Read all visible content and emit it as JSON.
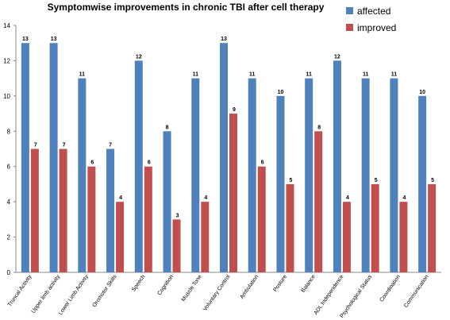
{
  "chart_data": {
    "type": "bar",
    "title": "Symptomwise improvements in chronic TBI after cell therapy",
    "xlabel": "",
    "ylabel": "",
    "ylim": [
      0,
      14
    ],
    "yticks": [
      0,
      2,
      4,
      6,
      8,
      10,
      12,
      14
    ],
    "grid": false,
    "legend_position": "top-right",
    "categories": [
      "Truncal Activity",
      "Upper limb activity",
      "Lower Limb Activity",
      "Oromotor Skills",
      "Speech",
      "Cognition",
      "Muscle Tone",
      "Voluntary Control",
      "Ambulation",
      "Posture",
      "Balance",
      "ADL Independence",
      "Psychological Status",
      "Coordination",
      "Communication"
    ],
    "series": [
      {
        "name": "affected",
        "color": "#4f81bd",
        "values": [
          13,
          13,
          11,
          7,
          12,
          8,
          11,
          13,
          11,
          10,
          11,
          12,
          11,
          11,
          10
        ]
      },
      {
        "name": "improved",
        "color": "#c0504d",
        "values": [
          7,
          7,
          6,
          4,
          6,
          3,
          4,
          9,
          6,
          5,
          8,
          4,
          5,
          4,
          5
        ]
      }
    ]
  }
}
